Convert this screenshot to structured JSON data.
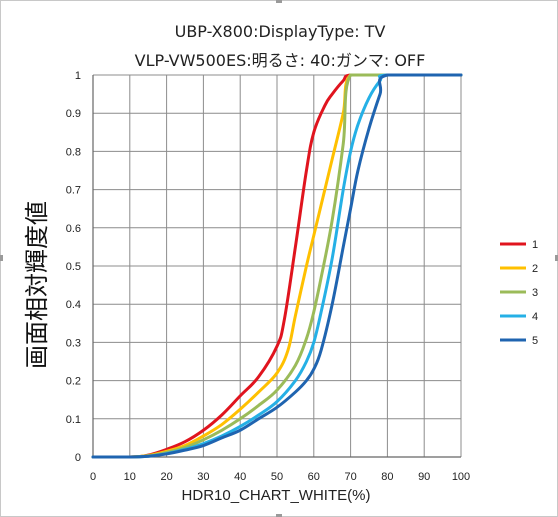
{
  "chart_data": {
    "type": "line",
    "title": "UBP-X800:DisplayType: TV",
    "subtitle": "VLP-VW500ES:明るさ: 40:ガンマ: OFF",
    "xlabel": "HDR10_CHART_WHITE(%)",
    "ylabel": "画面相対輝度値",
    "xlim": [
      0,
      100
    ],
    "ylim": [
      0,
      1
    ],
    "x_ticks": [
      "0",
      "10",
      "20",
      "30",
      "40",
      "50",
      "60",
      "70",
      "80",
      "90",
      "100"
    ],
    "y_ticks": [
      "0",
      "0.1",
      "0.2",
      "0.3",
      "0.4",
      "0.5",
      "0.6",
      "0.7",
      "0.8",
      "0.9",
      "1"
    ],
    "grid": true,
    "legend_position": "right",
    "series": [
      {
        "name": "1",
        "color": "#e0141e",
        "x": [
          0,
          10,
          15,
          20,
          25,
          30,
          35,
          40,
          45,
          50,
          52,
          55,
          58,
          60,
          63,
          65,
          68,
          70,
          80,
          100
        ],
        "y": [
          0,
          0,
          0.005,
          0.02,
          0.04,
          0.07,
          0.11,
          0.16,
          0.21,
          0.29,
          0.36,
          0.55,
          0.75,
          0.85,
          0.92,
          0.95,
          0.985,
          1,
          1,
          1
        ]
      },
      {
        "name": "2",
        "color": "#ffc000",
        "x": [
          0,
          10,
          15,
          20,
          25,
          30,
          35,
          40,
          45,
          50,
          53,
          55,
          58,
          60,
          63,
          65,
          68,
          70,
          80,
          100
        ],
        "y": [
          0,
          0,
          0.004,
          0.015,
          0.03,
          0.055,
          0.085,
          0.125,
          0.17,
          0.22,
          0.28,
          0.37,
          0.5,
          0.58,
          0.7,
          0.78,
          0.9,
          1,
          1,
          1
        ]
      },
      {
        "name": "3",
        "color": "#9bbb59",
        "x": [
          0,
          10,
          15,
          20,
          25,
          30,
          35,
          40,
          45,
          50,
          55,
          58,
          60,
          62,
          65,
          68,
          70,
          80,
          100
        ],
        "y": [
          0,
          0,
          0.003,
          0.012,
          0.025,
          0.045,
          0.07,
          0.1,
          0.135,
          0.175,
          0.24,
          0.31,
          0.38,
          0.47,
          0.62,
          0.82,
          1,
          1,
          1
        ]
      },
      {
        "name": "4",
        "color": "#25b0e6",
        "x": [
          0,
          10,
          15,
          20,
          25,
          30,
          35,
          40,
          45,
          50,
          55,
          58,
          60,
          62,
          65,
          68,
          70,
          72,
          75,
          78,
          80,
          100
        ],
        "y": [
          0,
          0,
          0.002,
          0.009,
          0.02,
          0.035,
          0.055,
          0.08,
          0.11,
          0.145,
          0.2,
          0.25,
          0.3,
          0.38,
          0.52,
          0.7,
          0.8,
          0.87,
          0.94,
          0.985,
          1,
          1
        ]
      },
      {
        "name": "5",
        "color": "#1f64b0",
        "x": [
          0,
          10,
          15,
          20,
          25,
          30,
          35,
          40,
          45,
          50,
          55,
          58,
          60,
          62,
          65,
          68,
          70,
          72,
          75,
          78,
          80,
          100
        ],
        "y": [
          0,
          0,
          0.002,
          0.008,
          0.018,
          0.03,
          0.05,
          0.07,
          0.1,
          0.13,
          0.17,
          0.2,
          0.23,
          0.28,
          0.4,
          0.55,
          0.65,
          0.75,
          0.86,
          0.95,
          1,
          1
        ]
      }
    ]
  }
}
